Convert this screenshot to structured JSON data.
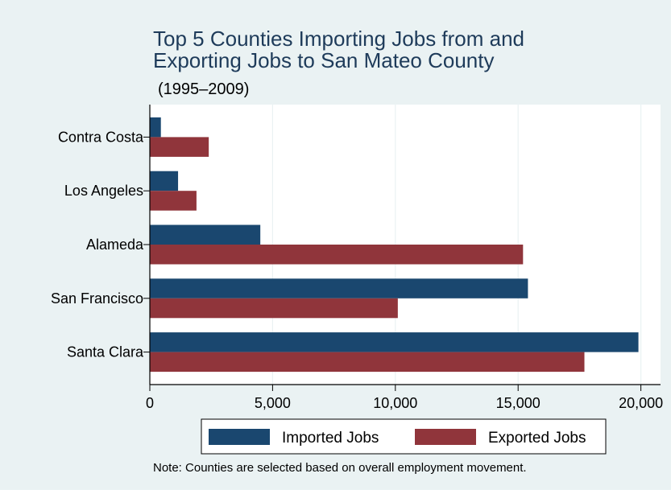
{
  "chart_data": {
    "type": "bar",
    "orientation": "horizontal",
    "title_lines": [
      "Top 5 Counties Importing Jobs from and",
      "Exporting Jobs to San Mateo County"
    ],
    "subtitle": "(1995–2009)",
    "categories": [
      "Contra Costa",
      "Los Angeles",
      "Alameda",
      "San Francisco",
      "Santa Clara"
    ],
    "series": [
      {
        "name": "Imported Jobs",
        "color": "#1a476f",
        "values": [
          450,
          1150,
          4500,
          15400,
          19900
        ]
      },
      {
        "name": "Exported Jobs",
        "color": "#90353b",
        "values": [
          2400,
          1900,
          15200,
          10100,
          17700
        ]
      }
    ],
    "x_ticks": [
      0,
      5000,
      10000,
      15000,
      20000
    ],
    "x_tick_labels": [
      "0",
      "5,000",
      "10,000",
      "15,000",
      "20,000"
    ],
    "xlim": [
      0,
      20800
    ],
    "grid": "vertical",
    "legend_position": "bottom",
    "note": "Note: Counties are selected based on overall employment movement.",
    "colors": {
      "background": "#eaf2f3",
      "plot_background": "#ffffff",
      "grid": "#eaf2f3",
      "title": "#1e3b5a"
    }
  }
}
